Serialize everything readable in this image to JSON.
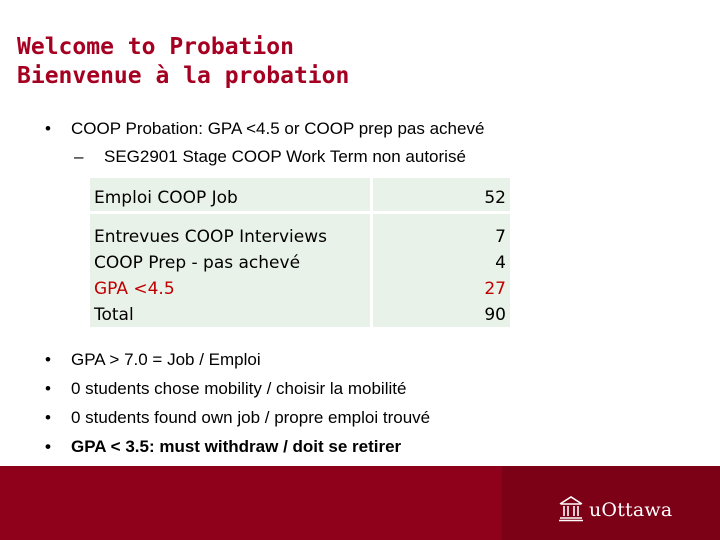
{
  "title": {
    "line1": "Welcome to Probation",
    "line2": "Bienvenue à la probation"
  },
  "bullets": {
    "main": "COOP Probation:  GPA <4.5 or COOP prep pas achevé",
    "sub": "SEG2901 Stage COOP Work Term non autorisé"
  },
  "table": {
    "header": {
      "label": "Emploi COOP Job",
      "value": "52"
    },
    "rows": [
      {
        "label": "Entrevues COOP Interviews",
        "value": "7"
      },
      {
        "label": "COOP Prep  - pas achevé",
        "value": "4"
      },
      {
        "label": "GPA <4.5",
        "value": "27",
        "color": "#c00000"
      },
      {
        "label": "Total",
        "value": "90"
      }
    ]
  },
  "notes": [
    "GPA > 7.0 = Job / Emploi",
    "0 students chose mobility / choisir la mobilité",
    "0 students found own job / propre emploi trouvé",
    "GPA < 3.5: must withdraw / doit se retirer"
  ],
  "footer": {
    "logo_text": "uOttawa",
    "logo_icon": "university-building-icon",
    "colors": {
      "band": "#8f001a",
      "logo_block": "#7c0016",
      "title": "#a50021"
    }
  }
}
